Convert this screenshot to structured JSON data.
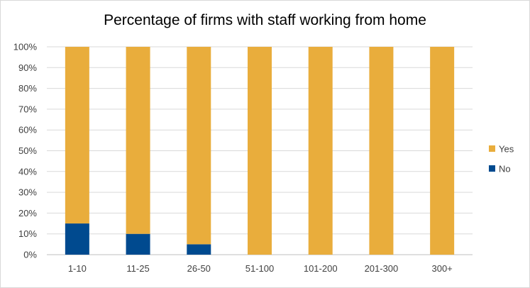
{
  "chart_data": {
    "type": "bar",
    "stacked": true,
    "title": "Percentage of firms with staff working from home",
    "categories": [
      "1-10",
      "11-25",
      "26-50",
      "51-100",
      "101-200",
      "201-300",
      "300+"
    ],
    "series": [
      {
        "name": "No",
        "color": "#004a8f",
        "values": [
          15,
          10,
          5,
          0,
          0,
          0,
          0
        ]
      },
      {
        "name": "Yes",
        "color": "#e9ad3c",
        "values": [
          85,
          90,
          95,
          100,
          100,
          100,
          100
        ]
      }
    ],
    "ylim": [
      0,
      100
    ],
    "yticks": [
      0,
      10,
      20,
      30,
      40,
      50,
      60,
      70,
      80,
      90,
      100
    ],
    "ytick_labels": [
      "0%",
      "10%",
      "20%",
      "30%",
      "40%",
      "50%",
      "60%",
      "70%",
      "80%",
      "90%",
      "100%"
    ],
    "grid": true,
    "legend": {
      "position": "right",
      "entries": [
        "Yes",
        "No"
      ]
    }
  }
}
